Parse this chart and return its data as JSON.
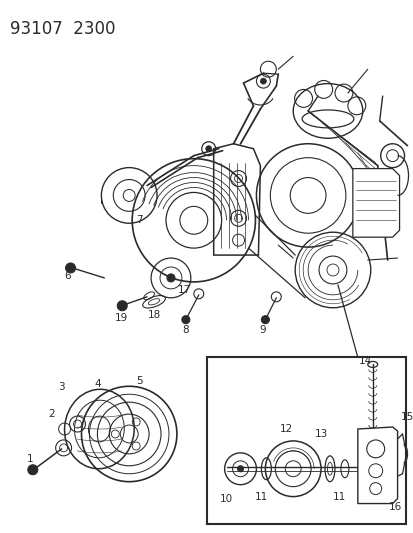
{
  "title": "93107  2300",
  "bg_color": "#ffffff",
  "line_color": "#2a2a2a",
  "label_fontsize": 7.5,
  "title_fontsize": 12
}
